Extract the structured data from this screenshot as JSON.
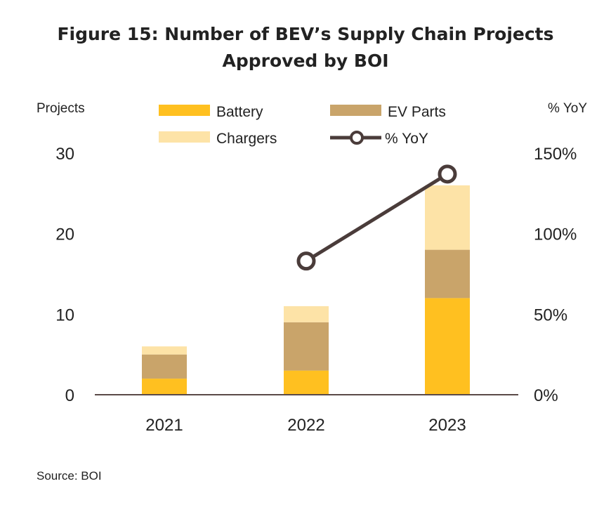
{
  "title_line1": "Figure 15: Number of BEV’s Supply Chain Projects",
  "title_line2": "Approved by BOI",
  "source": "Source: BOI",
  "chart_data": {
    "type": "bar",
    "stacked": true,
    "categories": [
      "2021",
      "2022",
      "2023"
    ],
    "series": [
      {
        "name": "Battery",
        "values": [
          2,
          3,
          12
        ],
        "color": "#FFC020"
      },
      {
        "name": "EV Parts",
        "values": [
          3,
          6,
          6
        ],
        "color": "#C9A46A"
      },
      {
        "name": "Chargers",
        "values": [
          1,
          2,
          8
        ],
        "color": "#FDE3A7"
      }
    ],
    "line_series": {
      "name": "% YoY",
      "axis": "right",
      "values": [
        null,
        83,
        137
      ],
      "color": "#4A3C3A"
    },
    "ylabel_left": "Projects",
    "ylabel_right": "% YoY",
    "ylim_left": [
      0,
      30
    ],
    "ylim_right": [
      0,
      150
    ],
    "yticks_left": [
      "0",
      "10",
      "20",
      "30"
    ],
    "yticks_right": [
      "0%",
      "50%",
      "100%",
      "150%"
    ],
    "legend_position": "top",
    "grid": false
  }
}
